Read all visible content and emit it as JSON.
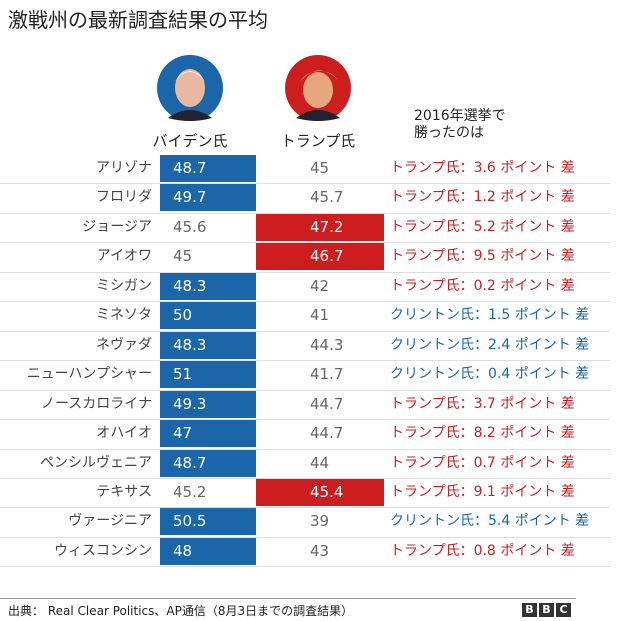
{
  "title": "激戦州の最新調査結果の平均",
  "columns": {
    "biden": {
      "label": "バイデン氏",
      "color": "#1b66a8"
    },
    "trump": {
      "label": "トランプ氏",
      "color": "#cc1e1e"
    },
    "result": {
      "label": "2016年選挙で\n勝ったのは"
    }
  },
  "rows": [
    {
      "state": "アリゾナ",
      "biden": 48.7,
      "trump": 45,
      "result": "トランプ氏：3.6 ポイント 差",
      "result_color": "#cc1e1e"
    },
    {
      "state": "フロリダ",
      "biden": 49.7,
      "trump": 45.7,
      "result": "トランプ氏：1.2 ポイント 差",
      "result_color": "#cc1e1e"
    },
    {
      "state": "ジョージア",
      "biden": 45.6,
      "trump": 47.2,
      "result": "トランプ氏：5.2 ポイント 差",
      "result_color": "#cc1e1e"
    },
    {
      "state": "アイオワ",
      "biden": 45,
      "trump": 46.7,
      "result": "トランプ氏：9.5 ポイント 差",
      "result_color": "#cc1e1e"
    },
    {
      "state": "ミシガン",
      "biden": 48.3,
      "trump": 42,
      "result": "トランプ氏：0.2 ポイント 差",
      "result_color": "#cc1e1e"
    },
    {
      "state": "ミネソタ",
      "biden": 50,
      "trump": 41,
      "result": "クリントン氏：1.5 ポイント 差",
      "result_color": "#1b66a8"
    },
    {
      "state": "ネヴァダ",
      "biden": 48.3,
      "trump": 44.3,
      "result": "クリントン氏：2.4 ポイント 差",
      "result_color": "#1b66a8"
    },
    {
      "state": "ニューハンプシャー",
      "biden": 51,
      "trump": 41.7,
      "result": "クリントン氏：0.4 ポイント 差",
      "result_color": "#1b66a8"
    },
    {
      "state": "ノースカロライナ",
      "biden": 49.3,
      "trump": 44.7,
      "result": "トランプ氏：3.7 ポイント 差",
      "result_color": "#cc1e1e"
    },
    {
      "state": "オハイオ",
      "biden": 47,
      "trump": 44.7,
      "result": "トランプ氏：8.2 ポイント 差",
      "result_color": "#cc1e1e"
    },
    {
      "state": "ペンシルヴェニア",
      "biden": 48.7,
      "trump": 44,
      "result": "トランプ氏：0.7 ポイント 差",
      "result_color": "#cc1e1e"
    },
    {
      "state": "テキサス",
      "biden": 45.2,
      "trump": 45.4,
      "result": "トランプ氏：9.1 ポイント 差",
      "result_color": "#cc1e1e"
    },
    {
      "state": "ヴァージニア",
      "biden": 50.5,
      "trump": 39,
      "result": "クリントン氏：5.4 ポイント 差",
      "result_color": "#1b66a8"
    },
    {
      "state": "ウィスコンシン",
      "biden": 48,
      "trump": 43,
      "result": "トランプ氏：0.8 ポイント 差",
      "result_color": "#cc1e1e"
    }
  ],
  "footer": {
    "source": "出典： Real Clear Politics、AP通信（8月3日までの調査結果）",
    "logo": [
      "B",
      "B",
      "C"
    ]
  }
}
